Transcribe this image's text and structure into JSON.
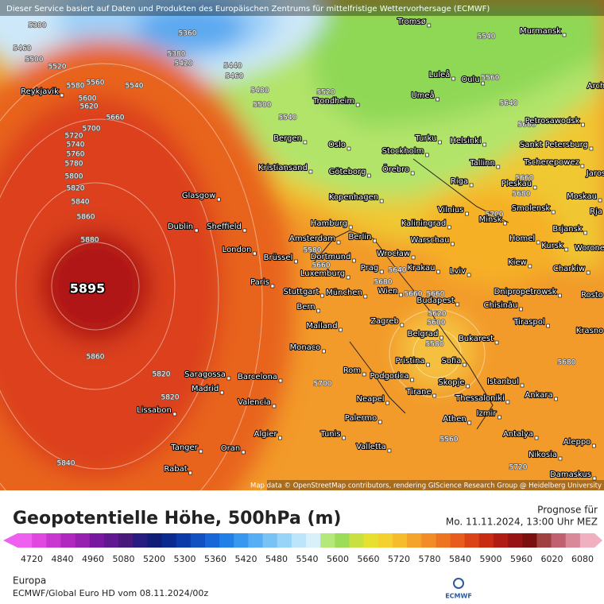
{
  "header": {
    "disclaimer": "Dieser Service basiert auf Daten und Produkten des Europäischen Zentrums für mittelfristige Wettervorhersage (ECMWF)"
  },
  "map": {
    "cities": [
      "Tromsø",
      "Murmansk",
      "Luleå",
      "Oulu",
      "Arch",
      "Reykjavik",
      "Trondheim",
      "Umeå",
      "Petrosawodsk",
      "Bergen",
      "Turku",
      "Helsinki",
      "Sankt Petersburg",
      "Oslo",
      "Stockholm",
      "Tscherepowez",
      "Kristiansand",
      "Göteborg",
      "Örebro",
      "Tallinn",
      "Jaros",
      "Pleskau",
      "Riga",
      "Glasgow",
      "Kopenhagen",
      "Moskau",
      "Vilnius",
      "Smolensk",
      "Rja",
      "Minsk",
      "Dublin",
      "Sheffield",
      "Hamburg",
      "Kaliningrad",
      "Brjansk",
      "Amsterdam",
      "Berlin",
      "Warschau",
      "Homel",
      "Kursk",
      "Worone",
      "London",
      "Brüssel",
      "Dortmund",
      "Wrocław",
      "Krakau",
      "Prag",
      "Kiew",
      "Charkiw",
      "Luxemburg",
      "Lviv",
      "Paris",
      "Stuttgart",
      "München",
      "Wien",
      "Dnipropetrowsk",
      "Rosto",
      "Budapest",
      "Bern",
      "Chisinău",
      "Mailand",
      "Zagreb",
      "Tiraspol",
      "Krasno",
      "Belgrad",
      "Bukarest",
      "Monaco",
      "Pristina",
      "Sofia",
      "Rom",
      "Podgorica",
      "Skopje",
      "Istanbul",
      "Saragossa",
      "Barcelona",
      "Madrid",
      "Tirane",
      "Ankara",
      "Thessaloniki",
      "Neapel",
      "Valencia",
      "Izmir",
      "Lissabon",
      "Palermo",
      "Athen",
      "Algier",
      "Tunis",
      "Antalya",
      "Aleppo",
      "Tanger",
      "Oran",
      "Valletta",
      "Nikosia",
      "Rabat",
      "Damaskus"
    ],
    "contour_labels": [
      "5380",
      "5360",
      "5460",
      "5380",
      "5500",
      "5420",
      "5440",
      "5520",
      "5460",
      "5540",
      "5560",
      "5580",
      "5560",
      "5540",
      "5600",
      "5620",
      "5640",
      "5480",
      "5500",
      "5520",
      "5540",
      "5660",
      "5700",
      "5600",
      "5720",
      "5740",
      "5760",
      "5780",
      "5800",
      "5820",
      "5840",
      "5860",
      "5880",
      "5660",
      "5660",
      "5680",
      "5700",
      "5580",
      "5660",
      "5680",
      "5640",
      "5660",
      "5620",
      "5600",
      "5580",
      "5860",
      "5820",
      "5820",
      "5700",
      "5680",
      "5840",
      "5720",
      "5560"
    ],
    "high_label": "5895",
    "attribution": "Map data © OpenStreetMap contributors, rendering GIScience Research Group @ Heidelberg University"
  },
  "legend": {
    "title": "Geopotentielle Höhe, 500hPa (m)",
    "forecast_label": "Prognose für",
    "forecast_time": "Mo. 11.11.2024, 13:00 Uhr MEZ",
    "ticks": [
      "4720",
      "4840",
      "4960",
      "5080",
      "5200",
      "5300",
      "5360",
      "5420",
      "5480",
      "5540",
      "5600",
      "5660",
      "5720",
      "5780",
      "5840",
      "5900",
      "5960",
      "6020",
      "6080"
    ]
  },
  "footer": {
    "region": "Europa",
    "model": "ECMWF/Global Euro HD vom  08.11.2024/00z",
    "logo": "ECMWF"
  }
}
